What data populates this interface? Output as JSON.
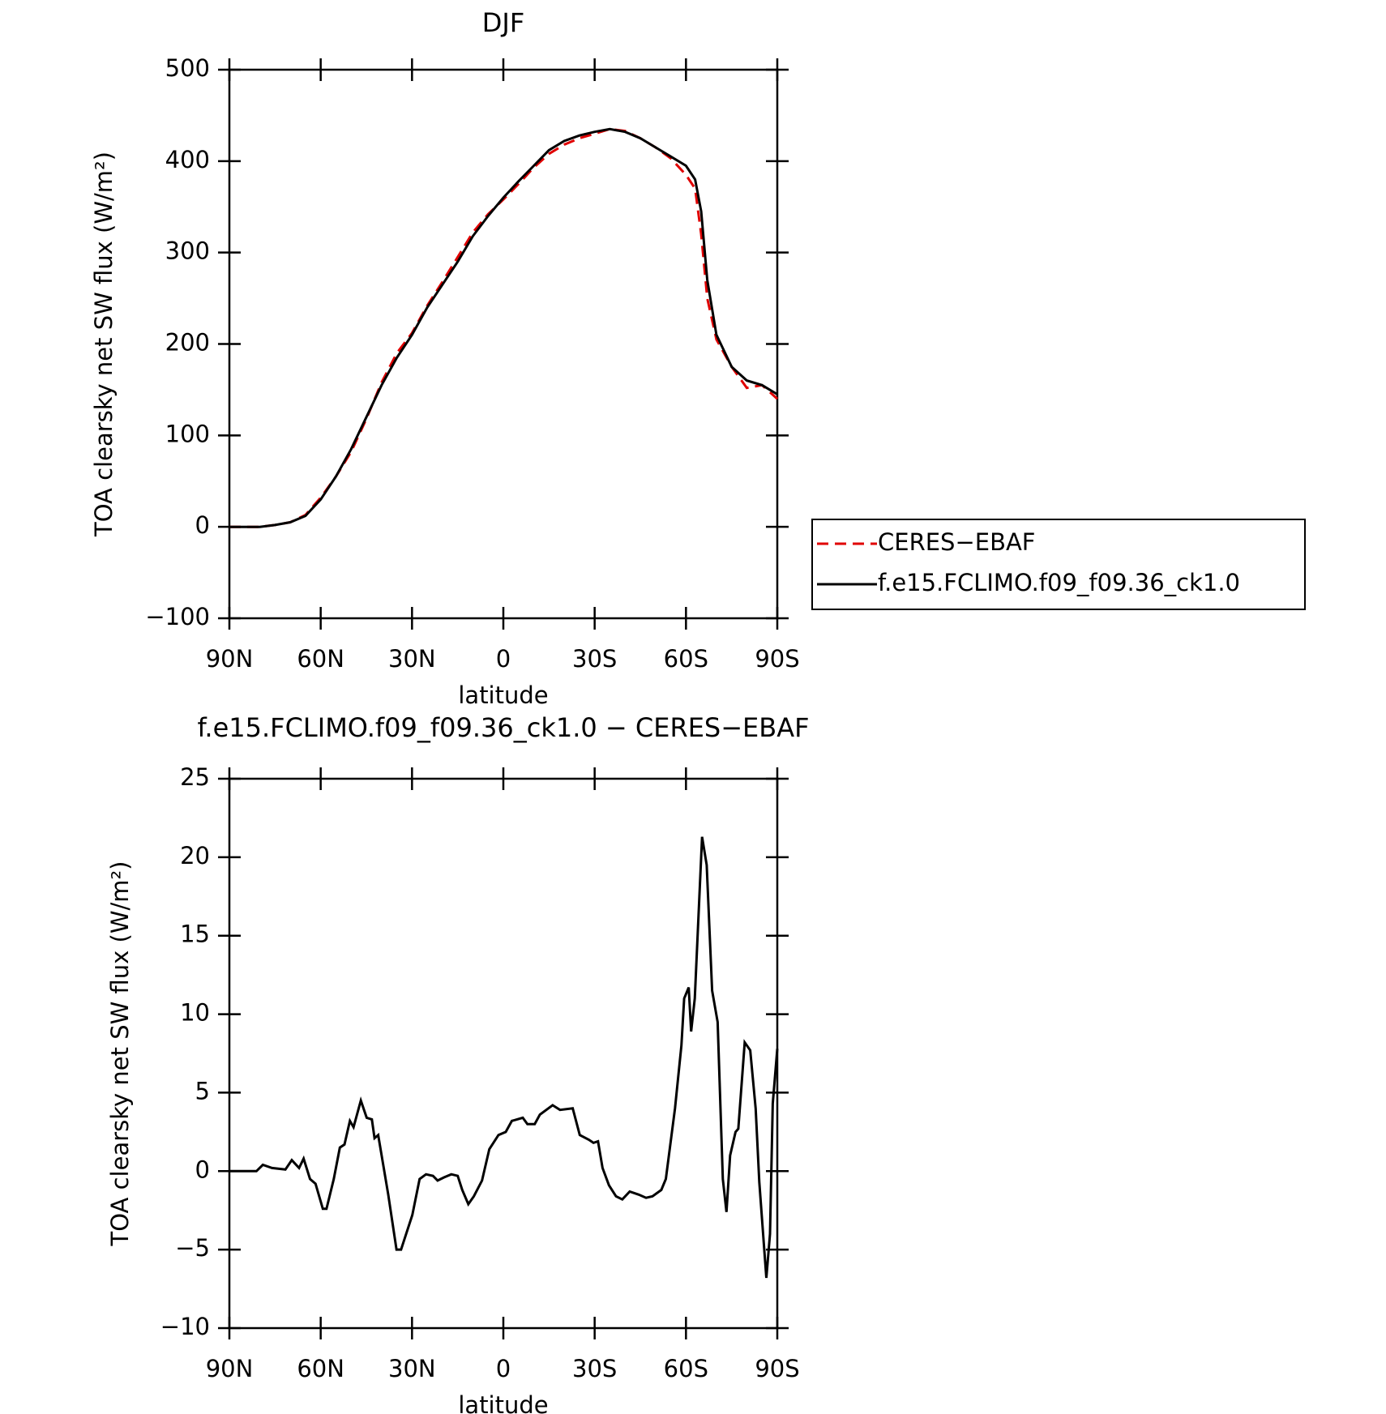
{
  "chart_data": [
    {
      "type": "line",
      "title": "DJF",
      "ylabel": "TOA clearsky net SW flux (W/m²)",
      "xlabel": "latitude",
      "legend": "right",
      "x": [
        90,
        85,
        80,
        75,
        70,
        65,
        60,
        55,
        50,
        45,
        40,
        35,
        30,
        25,
        20,
        15,
        10,
        5,
        0,
        -5,
        -10,
        -15,
        -20,
        -25,
        -30,
        -35,
        -40,
        -45,
        -50,
        -55,
        -60,
        -63,
        -65,
        -67,
        -70,
        -75,
        -80,
        -85,
        -90
      ],
      "series": [
        {
          "name": "CERES−EBAF",
          "color": "#e00000",
          "dash": true,
          "values": [
            0,
            0,
            0,
            2,
            5,
            13,
            32,
            55,
            82,
            118,
            158,
            190,
            212,
            242,
            268,
            295,
            322,
            342,
            358,
            375,
            393,
            408,
            418,
            425,
            430,
            435,
            433,
            425,
            415,
            403,
            385,
            370,
            320,
            250,
            205,
            175,
            152,
            155,
            140
          ]
        },
        {
          "name": "f.e15.FCLIMO.f09_f09.36_ck1.0",
          "color": "#000000",
          "dash": false,
          "values": [
            0,
            0,
            0,
            2,
            5,
            12,
            30,
            55,
            85,
            120,
            155,
            185,
            210,
            240,
            265,
            290,
            318,
            340,
            360,
            378,
            395,
            412,
            422,
            428,
            432,
            435,
            432,
            425,
            415,
            405,
            395,
            380,
            345,
            270,
            210,
            175,
            160,
            155,
            145
          ]
        }
      ],
      "xlim": [
        90,
        -90
      ],
      "xticks": [
        {
          "value": 90,
          "label": "90N"
        },
        {
          "value": 60,
          "label": "60N"
        },
        {
          "value": 30,
          "label": "30N"
        },
        0,
        {
          "value": -30,
          "label": "30S"
        },
        {
          "value": -60,
          "label": "60S"
        },
        {
          "value": -90,
          "label": "90S"
        }
      ],
      "ylim": [
        -100,
        500
      ],
      "yticks": [
        {
          "value": -100,
          "label": "−100"
        },
        0,
        100,
        200,
        300,
        400,
        500
      ]
    },
    {
      "type": "line",
      "title": "f.e15.FCLIMO.f09_f09.36_ck1.0 − CERES−EBAF",
      "ylabel": "TOA clearsky net SW flux (W/m²)",
      "xlabel": "latitude",
      "x": [
        90,
        81.1,
        79.0,
        76.0,
        71.6,
        69.5,
        67.1,
        65.6,
        63.5,
        61.7,
        59.3,
        58.1,
        55.7,
        53.7,
        52.2,
        50.4,
        49.2,
        46.8,
        44.9,
        43.2,
        42.3,
        41.1,
        37.8,
        35.1,
        33.6,
        29.9,
        27.5,
        25.4,
        23.1,
        21.6,
        19.5,
        17.1,
        15.0,
        13.5,
        11.5,
        9.7,
        7.0,
        4.6,
        1.6,
        -0.8,
        -2.8,
        -6.4,
        -7.9,
        -10.3,
        -12.0,
        -16.2,
        -18.6,
        -22.8,
        -25.1,
        -28.1,
        -29.6,
        -31.1,
        -32.6,
        -34.7,
        -37.0,
        -39.1,
        -41.5,
        -44.5,
        -46.9,
        -49.0,
        -51.9,
        -53.4,
        -56.4,
        -58.5,
        -59.4,
        -60.9,
        -61.7,
        -62.9,
        -65.3,
        -66.8,
        -68.6,
        -70.4,
        -72.1,
        -73.3,
        -74.5,
        -76.3,
        -77.2,
        -79.3,
        -81.1,
        -82.9,
        -84.1,
        -85.8,
        -86.4,
        -87.6,
        -88.5,
        -90
      ],
      "series": [
        {
          "color": "#000000",
          "dash": false,
          "values": [
            0,
            0,
            0.4,
            0.2,
            0.1,
            0.7,
            0.2,
            0.8,
            -0.5,
            -0.8,
            -2.4,
            -2.4,
            -0.5,
            1.5,
            1.7,
            3.2,
            2.8,
            4.5,
            3.4,
            3.3,
            2.1,
            2.3,
            -1.5,
            -5.0,
            -5.0,
            -2.8,
            -0.5,
            -0.2,
            -0.3,
            -0.6,
            -0.4,
            -0.2,
            -0.3,
            -1.2,
            -2.1,
            -1.6,
            -0.6,
            1.4,
            2.3,
            2.5,
            3.2,
            3.4,
            3.0,
            3.0,
            3.6,
            4.2,
            3.9,
            4.0,
            2.3,
            2.0,
            1.8,
            1.9,
            0.2,
            -0.9,
            -1.6,
            -1.8,
            -1.3,
            -1.5,
            -1.7,
            -1.6,
            -1.2,
            -0.5,
            4,
            8.0,
            11.0,
            11.7,
            8.9,
            11.0,
            21.3,
            19.5,
            11.5,
            9.5,
            -0.5,
            -2.6,
            1.0,
            2.5,
            2.7,
            8.2,
            7.7,
            4.0,
            -0.7,
            -5.2,
            -6.8,
            -4.0,
            4.3,
            7.8
          ]
        }
      ],
      "xlim": [
        90,
        -90
      ],
      "xticks": [
        {
          "value": 90,
          "label": "90N"
        },
        {
          "value": 60,
          "label": "60N"
        },
        {
          "value": 30,
          "label": "30N"
        },
        0,
        {
          "value": -30,
          "label": "30S"
        },
        {
          "value": -60,
          "label": "60S"
        },
        {
          "value": -90,
          "label": "90S"
        }
      ],
      "ylim": [
        -10,
        25
      ],
      "yticks": [
        {
          "value": -10,
          "label": "−10"
        },
        {
          "value": -5,
          "label": "−5"
        },
        0,
        5,
        10,
        15,
        20,
        25
      ]
    }
  ]
}
